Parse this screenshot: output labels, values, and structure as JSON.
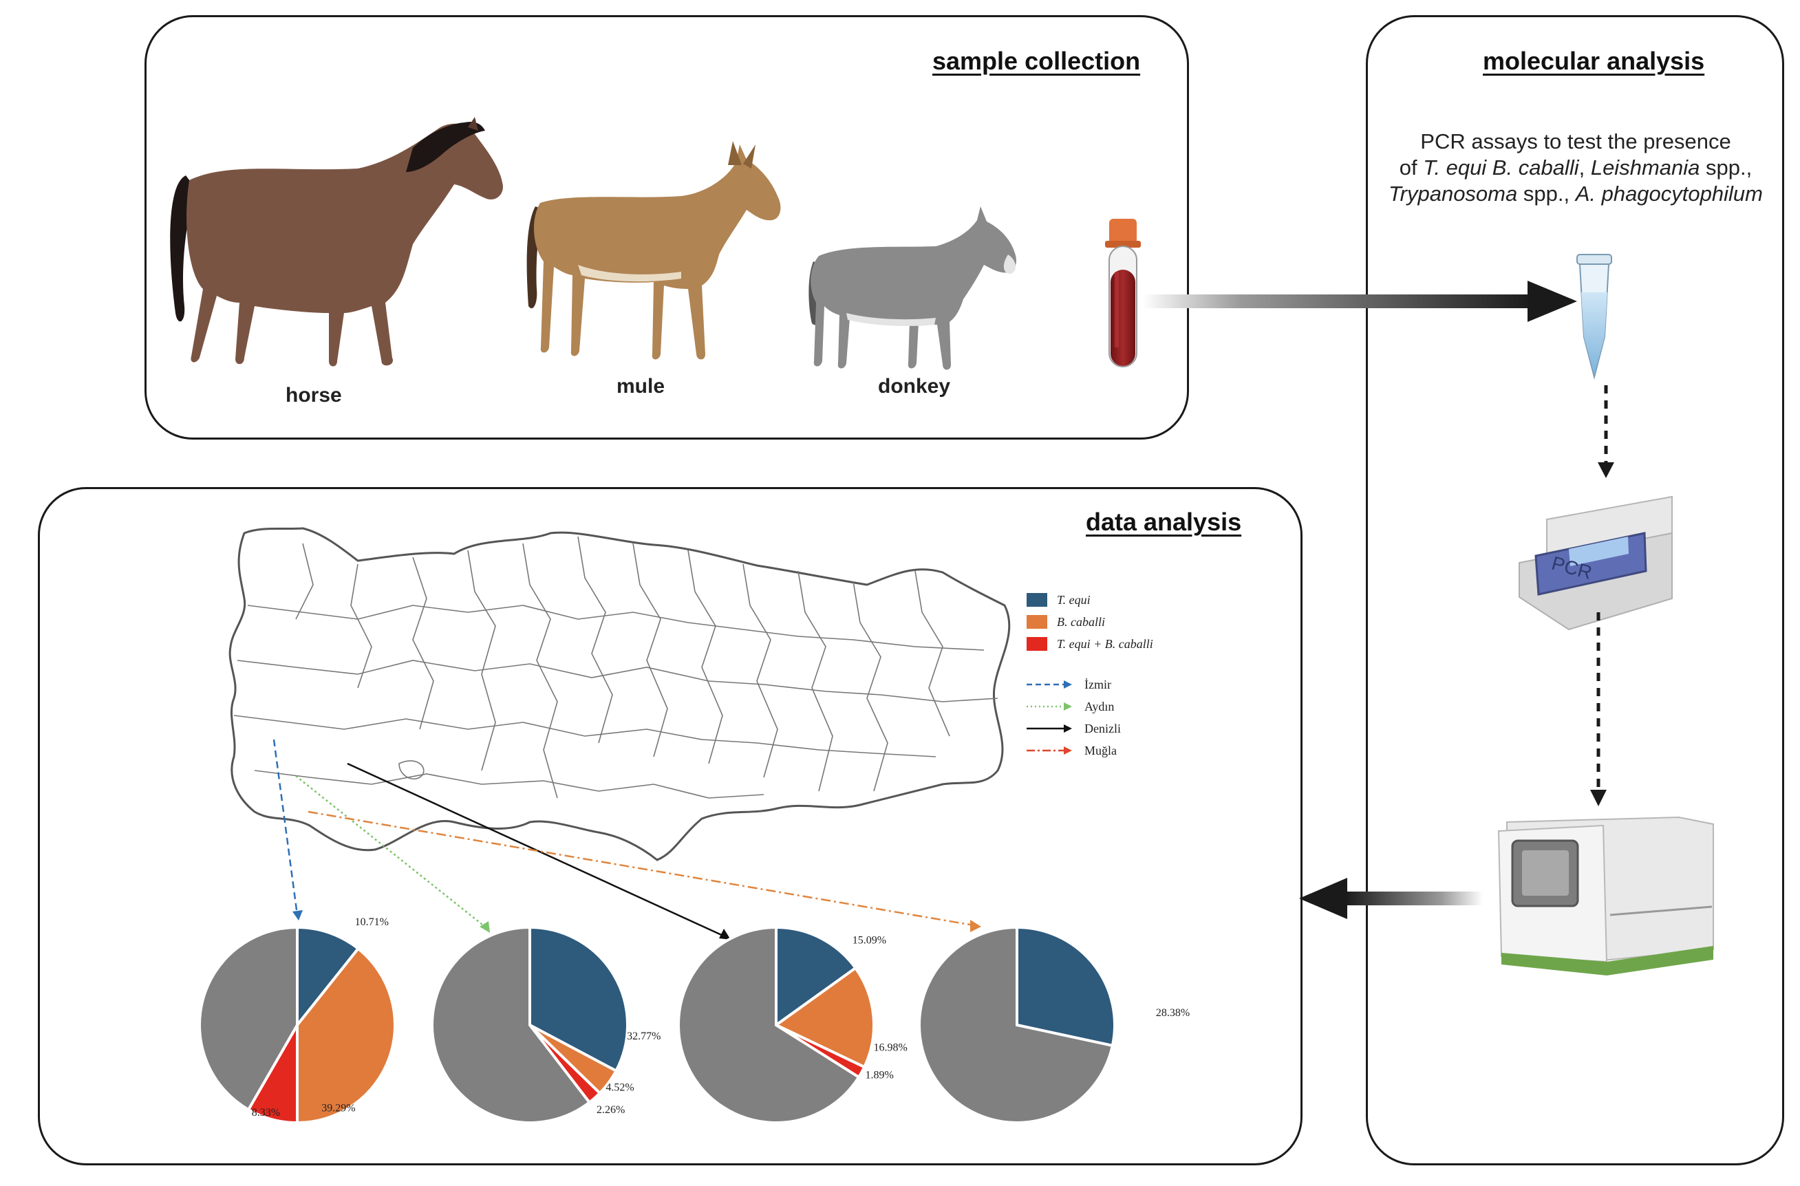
{
  "panels": {
    "sample_collection": {
      "title": "sample collection"
    },
    "molecular_analysis": {
      "title": "molecular analysis",
      "text_line1": "PCR assays to test the presence",
      "text_line2_prefix": "of ",
      "text_line2_species1": "T. equi B. caballi",
      "text_line2_species2": "Leishmania",
      "text_line2_suffix": " spp.,",
      "text_line3_species1": "Trypanosoma",
      "text_line3_mid": " spp., ",
      "text_line3_species2": "A. phagocytophilum",
      "device_label": "PCR"
    },
    "data_analysis": {
      "title": "data analysis"
    }
  },
  "animals": [
    {
      "label": "horse",
      "color": "#7a5443"
    },
    {
      "label": "mule",
      "color": "#b08453"
    },
    {
      "label": "donkey",
      "color": "#8a8a8a"
    }
  ],
  "legend": {
    "species": [
      {
        "label": "T. equi",
        "color": "#2e5a7c"
      },
      {
        "label": "B. caballi",
        "color": "#e07b3c"
      },
      {
        "label": "T. equi + B. caballi",
        "color": "#e3281f"
      }
    ],
    "regions": [
      {
        "label": "İzmir",
        "color": "#2e6fb5",
        "style": "dashed"
      },
      {
        "label": "Aydın",
        "color": "#7cc36a",
        "style": "dotted"
      },
      {
        "label": "Denizli",
        "color": "#111111",
        "style": "solid"
      },
      {
        "label": "Muğla",
        "color": "#e0462d",
        "style": "dashdot"
      }
    ]
  },
  "chart_data": [
    {
      "type": "pie",
      "region": "İzmir",
      "slices": [
        {
          "name": "T. equi",
          "value": 10.71,
          "label": "10.71%"
        },
        {
          "name": "B. caballi",
          "value": 39.29,
          "label": "39.29%"
        },
        {
          "name": "T. equi + B. caballi",
          "value": 8.33,
          "label": "8.33%"
        },
        {
          "name": "",
          "value": 41.67,
          "label": ""
        }
      ]
    },
    {
      "type": "pie",
      "region": "Aydın",
      "slices": [
        {
          "name": "T. equi",
          "value": 32.77,
          "label": "32.77%"
        },
        {
          "name": "B. caballi",
          "value": 4.52,
          "label": "4.52%"
        },
        {
          "name": "T. equi + B. caballi",
          "value": 2.26,
          "label": "2.26%"
        },
        {
          "name": "",
          "value": 60.45,
          "label": ""
        }
      ]
    },
    {
      "type": "pie",
      "region": "Denizli",
      "slices": [
        {
          "name": "T. equi",
          "value": 15.09,
          "label": "15.09%"
        },
        {
          "name": "B. caballi",
          "value": 16.98,
          "label": "16.98%"
        },
        {
          "name": "T. equi + B. caballi",
          "value": 1.89,
          "label": "1.89%"
        },
        {
          "name": "",
          "value": 66.04,
          "label": ""
        }
      ]
    },
    {
      "type": "pie",
      "region": "Muğla",
      "slices": [
        {
          "name": "T. equi",
          "value": 28.38,
          "label": "28.38%"
        },
        {
          "name": "B. caballi",
          "value": 0,
          "label": ""
        },
        {
          "name": "T. equi + B. caballi",
          "value": 0,
          "label": ""
        },
        {
          "name": "",
          "value": 71.62,
          "label": ""
        }
      ]
    }
  ],
  "colors": {
    "other_slice": "#808080",
    "arrow": "#222222"
  }
}
